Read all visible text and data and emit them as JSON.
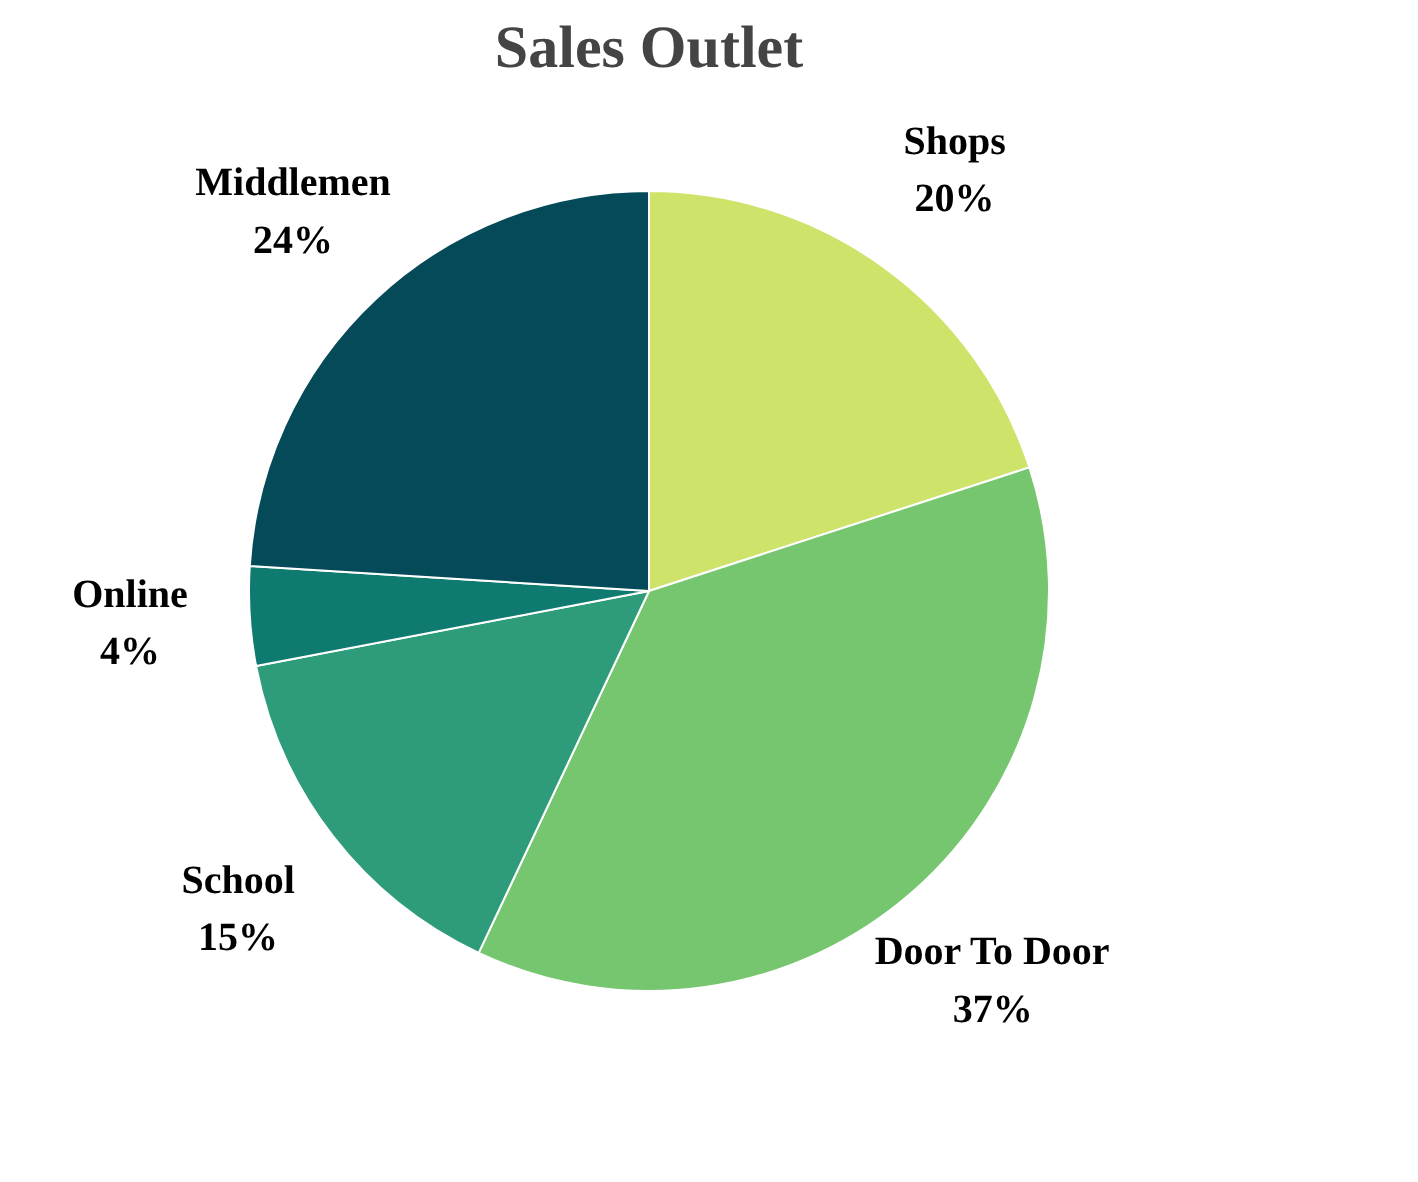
{
  "chart_data": {
    "type": "pie",
    "title": "Sales Outlet",
    "categories": [
      "Shops",
      "Door To Door",
      "School",
      "Online",
      "Middlemen"
    ],
    "values": [
      20,
      37,
      15,
      4,
      24
    ],
    "colors": [
      "#cde36a",
      "#76c56f",
      "#2e9c7a",
      "#0f7a70",
      "#044a59"
    ],
    "value_labels": [
      "20%",
      "37%",
      "15%",
      "4%",
      "24%"
    ]
  }
}
